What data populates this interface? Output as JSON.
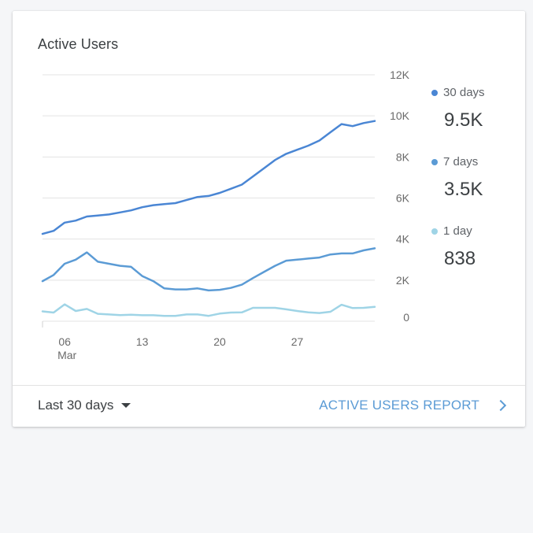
{
  "card": {
    "title": "Active Users",
    "footer": {
      "range_label": "Last 30 days",
      "report_link": "ACTIVE USERS REPORT"
    }
  },
  "legend": [
    {
      "label": "30 days",
      "value": "9.5K",
      "color": "#4a86d4"
    },
    {
      "label": "7 days",
      "value": "3.5K",
      "color": "#5b9bd5"
    },
    {
      "label": "1 day",
      "value": "838",
      "color": "#9fd4e6"
    }
  ],
  "icons": {
    "range_caret": "caret-down-icon",
    "report_chevron": "chevron-right-icon"
  },
  "chart_data": {
    "type": "line",
    "title": "Active Users",
    "xlabel": "",
    "ylabel": "",
    "ylim": [
      0,
      12000
    ],
    "grid": true,
    "y_ticks": [
      {
        "value": 0,
        "label": "0"
      },
      {
        "value": 2000,
        "label": "2K"
      },
      {
        "value": 4000,
        "label": "4K"
      },
      {
        "value": 6000,
        "label": "6K"
      },
      {
        "value": 8000,
        "label": "8K"
      },
      {
        "value": 10000,
        "label": "10K"
      },
      {
        "value": 12000,
        "label": "12K"
      }
    ],
    "x_ticks": [
      {
        "day": 6,
        "label": "06",
        "sublabel": "Mar"
      },
      {
        "day": 13,
        "label": "13",
        "sublabel": ""
      },
      {
        "day": 20,
        "label": "20",
        "sublabel": ""
      },
      {
        "day": 27,
        "label": "27",
        "sublabel": ""
      }
    ],
    "x": [
      4,
      5,
      6,
      7,
      8,
      9,
      10,
      11,
      12,
      13,
      14,
      15,
      16,
      17,
      18,
      19,
      20,
      21,
      22,
      23,
      24,
      25,
      26,
      27,
      28,
      29,
      30,
      31,
      32,
      33,
      34
    ],
    "series": [
      {
        "name": "30 days",
        "color": "#4a86d4",
        "values": [
          4250,
          4400,
          4800,
          4900,
          5100,
          5150,
          5200,
          5300,
          5400,
          5550,
          5650,
          5700,
          5750,
          5900,
          6050,
          6100,
          6250,
          6450,
          6650,
          7050,
          7450,
          7850,
          8150,
          8350,
          8550,
          8800,
          9200,
          9600,
          9500,
          9650,
          9750
        ]
      },
      {
        "name": "7 days",
        "color": "#5b9bd5",
        "values": [
          1950,
          2250,
          2800,
          3000,
          3350,
          2900,
          2800,
          2700,
          2650,
          2200,
          1950,
          1600,
          1550,
          1550,
          1600,
          1500,
          1530,
          1620,
          1780,
          2100,
          2400,
          2700,
          2950,
          3000,
          3050,
          3100,
          3250,
          3300,
          3300,
          3450,
          3550
        ]
      },
      {
        "name": "1 day",
        "color": "#9fd4e6",
        "values": [
          480,
          420,
          820,
          500,
          600,
          360,
          330,
          300,
          320,
          290,
          290,
          260,
          260,
          330,
          330,
          260,
          370,
          420,
          430,
          650,
          650,
          650,
          580,
          500,
          430,
          400,
          460,
          800,
          640,
          650,
          700
        ]
      }
    ]
  }
}
